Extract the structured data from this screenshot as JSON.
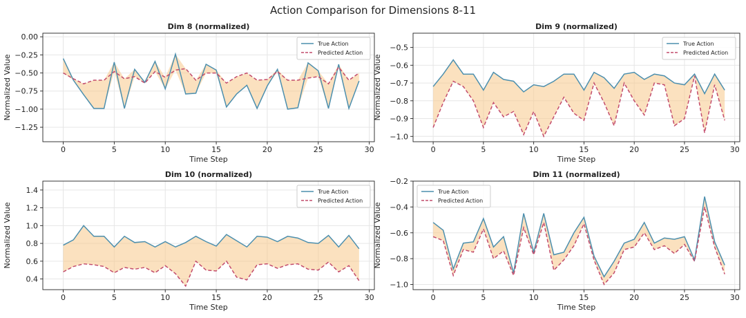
{
  "figure": {
    "suptitle": "Action Comparison for Dimensions 8-11",
    "colors": {
      "true_line": "#4c8fae",
      "pred_line": "#c24b6c",
      "band": "#f7c88b",
      "grid": "#e6e6e6"
    }
  },
  "chart_data": [
    {
      "type": "line",
      "title": "Dim 8 (normalized)",
      "xlabel": "Time Step",
      "ylabel": "Normalized Value",
      "xlim": [
        -2,
        30.5
      ],
      "ylim": [
        -1.45,
        0.05
      ],
      "xticks": [
        0,
        5,
        10,
        15,
        20,
        25,
        30
      ],
      "yticks": [
        -1.25,
        -1.0,
        -0.75,
        -0.5,
        -0.25,
        0.0
      ],
      "ytick_labels": [
        "−1.25",
        "−1.00",
        "−0.75",
        "−0.50",
        "−0.25",
        "0.00"
      ],
      "grid": true,
      "legend": "top-right",
      "x": [
        0,
        1,
        2,
        3,
        4,
        5,
        6,
        7,
        8,
        9,
        10,
        11,
        12,
        13,
        14,
        15,
        16,
        17,
        18,
        19,
        20,
        21,
        22,
        23,
        24,
        25,
        26,
        27,
        28,
        29
      ],
      "series": [
        {
          "name": "True Action",
          "style": "solid",
          "values": [
            -0.3,
            -0.6,
            -0.8,
            -0.99,
            -0.99,
            -0.35,
            -0.99,
            -0.45,
            -0.63,
            -0.34,
            -0.72,
            -0.24,
            -0.79,
            -0.78,
            -0.38,
            -0.46,
            -0.97,
            -0.79,
            -0.67,
            -0.99,
            -0.68,
            -0.45,
            -1.0,
            -0.98,
            -0.36,
            -0.47,
            -0.99,
            -0.38,
            -0.99,
            -0.61
          ]
        },
        {
          "name": "Predicted Action",
          "style": "dashed",
          "values": [
            -0.5,
            -0.58,
            -0.65,
            -0.6,
            -0.6,
            -0.48,
            -0.58,
            -0.55,
            -0.64,
            -0.48,
            -0.56,
            -0.46,
            -0.44,
            -0.6,
            -0.5,
            -0.5,
            -0.64,
            -0.55,
            -0.5,
            -0.6,
            -0.59,
            -0.48,
            -0.6,
            -0.6,
            -0.57,
            -0.55,
            -0.65,
            -0.42,
            -0.6,
            -0.5
          ]
        }
      ]
    },
    {
      "type": "line",
      "title": "Dim 9 (normalized)",
      "xlabel": "Time Step",
      "ylabel": "Normalized Value",
      "xlim": [
        -2,
        30.5
      ],
      "ylim": [
        -1.03,
        -0.42
      ],
      "xticks": [
        0,
        5,
        10,
        15,
        20,
        25,
        30
      ],
      "yticks": [
        -1.0,
        -0.9,
        -0.8,
        -0.7,
        -0.6,
        -0.5
      ],
      "ytick_labels": [
        "−1.0",
        "−0.9",
        "−0.8",
        "−0.7",
        "−0.6",
        "−0.5"
      ],
      "grid": true,
      "legend": "top-right",
      "x": [
        0,
        1,
        2,
        3,
        4,
        5,
        6,
        7,
        8,
        9,
        10,
        11,
        12,
        13,
        14,
        15,
        16,
        17,
        18,
        19,
        20,
        21,
        22,
        23,
        24,
        25,
        26,
        27,
        28,
        29
      ],
      "series": [
        {
          "name": "True Action",
          "style": "solid",
          "values": [
            -0.72,
            -0.65,
            -0.57,
            -0.65,
            -0.65,
            -0.74,
            -0.64,
            -0.68,
            -0.69,
            -0.75,
            -0.71,
            -0.72,
            -0.69,
            -0.65,
            -0.65,
            -0.74,
            -0.64,
            -0.67,
            -0.73,
            -0.65,
            -0.64,
            -0.68,
            -0.65,
            -0.66,
            -0.7,
            -0.71,
            -0.65,
            -0.76,
            -0.65,
            -0.74
          ]
        },
        {
          "name": "Predicted Action",
          "style": "dashed",
          "values": [
            -0.95,
            -0.81,
            -0.69,
            -0.72,
            -0.8,
            -0.95,
            -0.81,
            -0.89,
            -0.86,
            -0.99,
            -0.86,
            -1.0,
            -0.89,
            -0.78,
            -0.87,
            -0.91,
            -0.7,
            -0.81,
            -0.94,
            -0.7,
            -0.8,
            -0.88,
            -0.7,
            -0.71,
            -0.94,
            -0.9,
            -0.66,
            -0.98,
            -0.71,
            -0.91
          ]
        }
      ]
    },
    {
      "type": "line",
      "title": "Dim 10 (normalized)",
      "xlabel": "Time Step",
      "ylabel": "Normalized Value",
      "xlim": [
        -2,
        30.5
      ],
      "ylim": [
        0.28,
        1.5
      ],
      "xticks": [
        0,
        5,
        10,
        15,
        20,
        25,
        30
      ],
      "yticks": [
        0.4,
        0.6,
        0.8,
        1.0,
        1.2,
        1.4
      ],
      "ytick_labels": [
        "0.4",
        "0.6",
        "0.8",
        "1.0",
        "1.2",
        "1.4"
      ],
      "grid": true,
      "legend": "top-right",
      "x": [
        0,
        1,
        2,
        3,
        4,
        5,
        6,
        7,
        8,
        9,
        10,
        11,
        12,
        13,
        14,
        15,
        16,
        17,
        18,
        19,
        20,
        21,
        22,
        23,
        24,
        25,
        26,
        27,
        28,
        29
      ],
      "series": [
        {
          "name": "True Action",
          "style": "solid",
          "values": [
            0.78,
            0.84,
            1.0,
            0.88,
            0.88,
            0.76,
            0.88,
            0.81,
            0.82,
            0.76,
            0.82,
            0.76,
            0.81,
            0.88,
            0.82,
            0.77,
            0.9,
            0.83,
            0.76,
            0.88,
            0.87,
            0.82,
            0.88,
            0.86,
            0.81,
            0.8,
            0.89,
            0.76,
            0.89,
            0.74
          ]
        },
        {
          "name": "Predicted Action",
          "style": "dashed",
          "values": [
            0.48,
            0.54,
            0.57,
            0.56,
            0.54,
            0.47,
            0.53,
            0.51,
            0.53,
            0.47,
            0.55,
            0.46,
            0.32,
            0.6,
            0.5,
            0.49,
            0.6,
            0.42,
            0.39,
            0.56,
            0.57,
            0.52,
            0.56,
            0.57,
            0.51,
            0.5,
            0.59,
            0.48,
            0.55,
            0.38
          ]
        }
      ]
    },
    {
      "type": "line",
      "title": "Dim 11 (normalized)",
      "xlabel": "Time Step",
      "ylabel": "Normalized Value",
      "xlim": [
        -2,
        30.5
      ],
      "ylim": [
        -1.04,
        -0.2
      ],
      "xticks": [
        0,
        5,
        10,
        15,
        20,
        25,
        30
      ],
      "yticks": [
        -1.0,
        -0.8,
        -0.6,
        -0.4,
        -0.2
      ],
      "ytick_labels": [
        "−1.0",
        "−0.8",
        "−0.6",
        "−0.4",
        "−0.2"
      ],
      "grid": true,
      "legend": "top-left",
      "x": [
        0,
        1,
        2,
        3,
        4,
        5,
        6,
        7,
        8,
        9,
        10,
        11,
        12,
        13,
        14,
        15,
        16,
        17,
        18,
        19,
        20,
        21,
        22,
        23,
        24,
        25,
        26,
        27,
        28,
        29
      ],
      "series": [
        {
          "name": "True Action",
          "style": "solid",
          "values": [
            -0.52,
            -0.58,
            -0.88,
            -0.68,
            -0.67,
            -0.49,
            -0.71,
            -0.63,
            -0.91,
            -0.45,
            -0.75,
            -0.45,
            -0.77,
            -0.75,
            -0.6,
            -0.48,
            -0.78,
            -0.94,
            -0.82,
            -0.68,
            -0.65,
            -0.52,
            -0.68,
            -0.64,
            -0.65,
            -0.63,
            -0.81,
            -0.32,
            -0.67,
            -0.85
          ]
        },
        {
          "name": "Predicted Action",
          "style": "dashed",
          "values": [
            -0.63,
            -0.66,
            -0.93,
            -0.73,
            -0.75,
            -0.57,
            -0.8,
            -0.74,
            -0.93,
            -0.56,
            -0.77,
            -0.52,
            -0.89,
            -0.81,
            -0.7,
            -0.53,
            -0.81,
            -1.0,
            -0.91,
            -0.73,
            -0.71,
            -0.6,
            -0.73,
            -0.7,
            -0.76,
            -0.69,
            -0.82,
            -0.4,
            -0.71,
            -0.92
          ]
        }
      ]
    }
  ]
}
